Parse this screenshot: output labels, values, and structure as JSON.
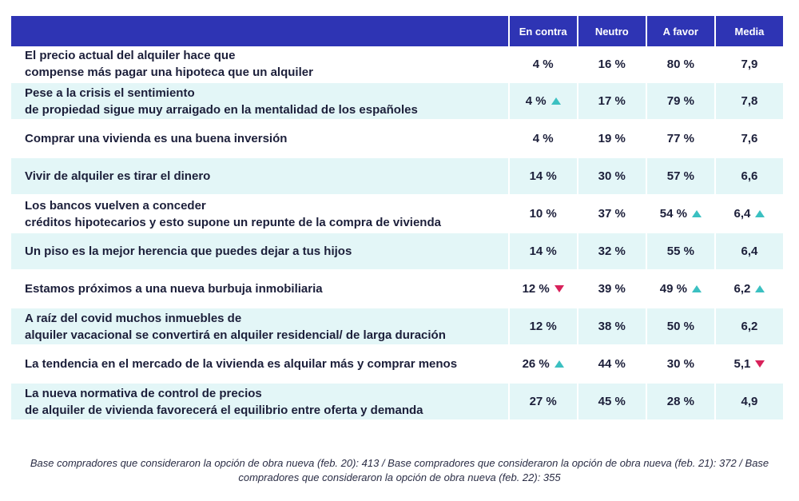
{
  "headers": [
    "",
    "En contra",
    "Neutro",
    "A favor",
    "Media"
  ],
  "rows": [
    {
      "statement": [
        "El precio actual del alquiler hace que",
        "compense más pagar una hipoteca que un alquiler"
      ],
      "en_contra": "4 %",
      "neutro": "16 %",
      "a_favor": "80 %",
      "media": "7,9",
      "arrows": {
        "en_contra": "",
        "a_favor": "",
        "media": ""
      }
    },
    {
      "statement": [
        "Pese a la crisis el sentimiento",
        "de propiedad sigue muy arraigado en la mentalidad de los españoles"
      ],
      "en_contra": "4 %",
      "neutro": "17 %",
      "a_favor": "79 %",
      "media": "7,8",
      "arrows": {
        "en_contra": "up",
        "a_favor": "",
        "media": ""
      }
    },
    {
      "statement": [
        "Comprar una vivienda es una buena inversión"
      ],
      "en_contra": "4 %",
      "neutro": "19 %",
      "a_favor": "77 %",
      "media": "7,6",
      "arrows": {
        "en_contra": "",
        "a_favor": "",
        "media": ""
      }
    },
    {
      "statement": [
        "Vivir de alquiler es tirar el dinero"
      ],
      "en_contra": "14 %",
      "neutro": "30 %",
      "a_favor": "57 %",
      "media": "6,6",
      "arrows": {
        "en_contra": "",
        "a_favor": "",
        "media": ""
      }
    },
    {
      "statement": [
        "Los bancos vuelven a conceder",
        "créditos hipotecarios y esto supone un repunte de la compra de vivienda"
      ],
      "en_contra": "10 %",
      "neutro": "37 %",
      "a_favor": "54 %",
      "media": "6,4",
      "arrows": {
        "en_contra": "",
        "a_favor": "up",
        "media": "up"
      }
    },
    {
      "statement": [
        "Un piso es la mejor herencia que puedes dejar a tus hijos"
      ],
      "en_contra": "14 %",
      "neutro": "32 %",
      "a_favor": "55 %",
      "media": "6,4",
      "arrows": {
        "en_contra": "",
        "a_favor": "",
        "media": ""
      }
    },
    {
      "statement": [
        "Estamos próximos a una nueva burbuja inmobiliaria"
      ],
      "en_contra": "12 %",
      "neutro": "39 %",
      "a_favor": "49 %",
      "media": "6,2",
      "arrows": {
        "en_contra": "down",
        "a_favor": "up",
        "media": "up"
      }
    },
    {
      "statement": [
        "A raíz del covid muchos inmuebles de",
        "alquiler vacacional se convertirá en alquiler residencial/ de larga duración"
      ],
      "en_contra": "12 %",
      "neutro": "38 %",
      "a_favor": "50 %",
      "media": "6,2",
      "arrows": {
        "en_contra": "",
        "a_favor": "",
        "media": ""
      }
    },
    {
      "statement": [
        "La tendencia en el mercado de la vivienda es alquilar más y comprar menos"
      ],
      "en_contra": "26 %",
      "neutro": "44 %",
      "a_favor": "30 %",
      "media": "5,1",
      "arrows": {
        "en_contra": "up",
        "a_favor": "",
        "media": "down"
      }
    },
    {
      "statement": [
        "La nueva normativa de control de precios",
        "de alquiler de vivienda favorecerá el equilibrio entre oferta y demanda"
      ],
      "en_contra": "27 %",
      "neutro": "45 %",
      "a_favor": "28 %",
      "media": "4,9",
      "arrows": {
        "en_contra": "",
        "a_favor": "",
        "media": ""
      }
    }
  ],
  "footnote": "Base compradores que consideraron la opción de obra nueva (feb. 20): 413 / Base compradores que consideraron la opción de obra nueva (feb. 21): 372 / Base compradores que consideraron la opción de obra nueva (feb. 22): 355",
  "colors": {
    "header": "#2e34b4",
    "row_alt": "#e3f6f7",
    "arrow_up": "#3bc0c1",
    "arrow_down": "#d8215a"
  }
}
